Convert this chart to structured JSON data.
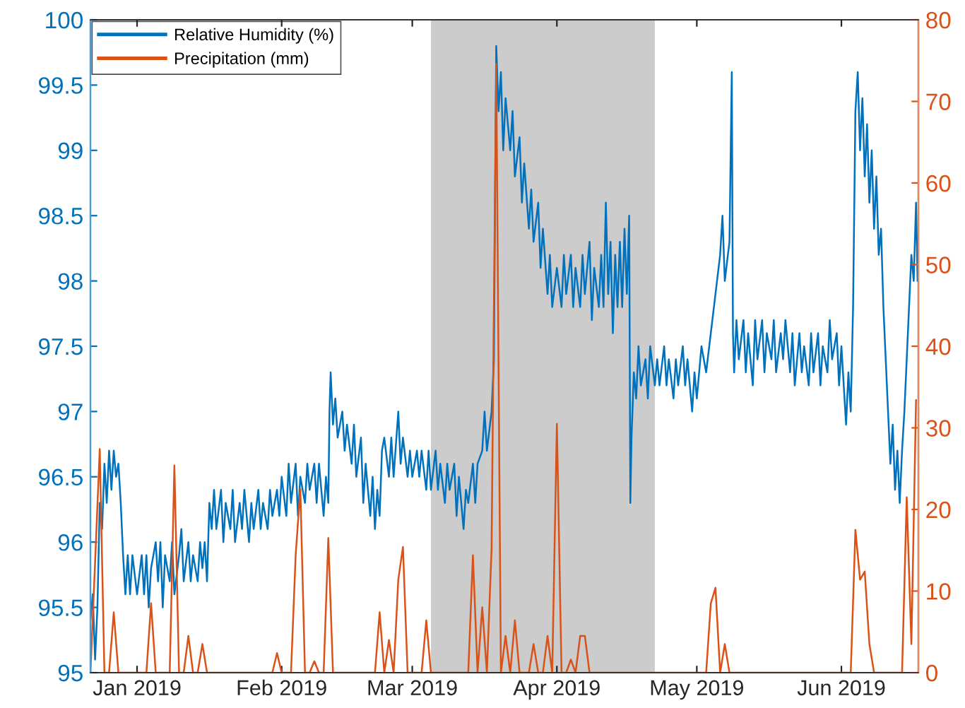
{
  "chart_data": {
    "type": "line",
    "xlim": [
      "2018-12-22",
      "2019-06-17T12:00"
    ],
    "xticks": [
      {
        "value": "2019-01-01",
        "label": "Jan 2019"
      },
      {
        "value": "2019-02-01",
        "label": "Feb 2019"
      },
      {
        "value": "2019-03-01",
        "label": "Mar 2019"
      },
      {
        "value": "2019-04-01",
        "label": "Apr 2019"
      },
      {
        "value": "2019-05-01",
        "label": "May 2019"
      },
      {
        "value": "2019-06-01",
        "label": "Jun 2019"
      }
    ],
    "ylim": [
      95,
      100
    ],
    "yticks": [
      95,
      95.5,
      96,
      96.5,
      97,
      97.5,
      98,
      98.5,
      99,
      99.5,
      100
    ],
    "y2lim": [
      0,
      80
    ],
    "y2ticks": [
      0,
      10,
      20,
      30,
      40,
      50,
      60,
      70,
      80
    ],
    "legend": "top left",
    "grid": false,
    "marker": "none",
    "line_style": "solid",
    "bands": [
      {
        "axis": "x",
        "from": "2019-03-05",
        "to": "2019-04-22",
        "color": "#cccccc"
      }
    ],
    "series": [
      {
        "name": "Relative Humidity (%)",
        "color": "#0072bd",
        "x": [
          "2018-12-22T00:00",
          "2018-12-22T12:00",
          "2018-12-23T00:00",
          "2018-12-23T12:00",
          "2018-12-24T00:00",
          "2018-12-24T12:00",
          "2018-12-25T00:00",
          "2018-12-25T12:00",
          "2018-12-26T00:00",
          "2018-12-26T12:00",
          "2018-12-27T00:00",
          "2018-12-27T12:00",
          "2018-12-28T00:00",
          "2018-12-28T12:00",
          "2018-12-29T00:00",
          "2018-12-29T12:00",
          "2018-12-30T00:00",
          "2018-12-30T12:00",
          "2018-12-31T00:00",
          "2019-01-01T00:00",
          "2019-01-02T00:00",
          "2019-01-02T12:00",
          "2019-01-03T00:00",
          "2019-01-03T12:00",
          "2019-01-04T00:00",
          "2019-01-05T00:00",
          "2019-01-05T12:00",
          "2019-01-06T00:00",
          "2019-01-06T12:00",
          "2019-01-07T00:00",
          "2019-01-08T00:00",
          "2019-01-08T12:00",
          "2019-01-09T00:00",
          "2019-01-10T00:00",
          "2019-01-10T12:00",
          "2019-01-11T00:00",
          "2019-01-12T00:00",
          "2019-01-12T12:00",
          "2019-01-13T00:00",
          "2019-01-14T00:00",
          "2019-01-14T12:00",
          "2019-01-15T00:00",
          "2019-01-15T12:00",
          "2019-01-16T00:00",
          "2019-01-16T12:00",
          "2019-01-17T00:00",
          "2019-01-17T12:00",
          "2019-01-18T00:00",
          "2019-01-19T00:00",
          "2019-01-19T12:00",
          "2019-01-20T00:00",
          "2019-01-21T00:00",
          "2019-01-21T12:00",
          "2019-01-22T00:00",
          "2019-01-23T00:00",
          "2019-01-23T12:00",
          "2019-01-24T00:00",
          "2019-01-25T00:00",
          "2019-01-25T12:00",
          "2019-01-26T00:00",
          "2019-01-27T00:00",
          "2019-01-27T12:00",
          "2019-01-28T00:00",
          "2019-01-29T00:00",
          "2019-01-29T12:00",
          "2019-01-30T00:00",
          "2019-01-31T00:00",
          "2019-01-31T12:00",
          "2019-02-01T00:00",
          "2019-02-02T00:00",
          "2019-02-02T12:00",
          "2019-02-03T00:00",
          "2019-02-04T00:00",
          "2019-02-04T12:00",
          "2019-02-05T00:00",
          "2019-02-06T00:00",
          "2019-02-06T12:00",
          "2019-02-07T00:00",
          "2019-02-08T00:00",
          "2019-02-08T12:00",
          "2019-02-09T00:00",
          "2019-02-10T00:00",
          "2019-02-10T12:00",
          "2019-02-11T00:00",
          "2019-02-11T06:00",
          "2019-02-11T12:00",
          "2019-02-12T00:00",
          "2019-02-12T12:00",
          "2019-02-13T00:00",
          "2019-02-14T00:00",
          "2019-02-14T12:00",
          "2019-02-15T00:00",
          "2019-02-16T00:00",
          "2019-02-16T12:00",
          "2019-02-17T00:00",
          "2019-02-18T00:00",
          "2019-02-18T12:00",
          "2019-02-19T00:00",
          "2019-02-20T00:00",
          "2019-02-20T12:00",
          "2019-02-21T00:00",
          "2019-02-21T12:00",
          "2019-02-22T00:00",
          "2019-02-22T12:00",
          "2019-02-23T00:00",
          "2019-02-24T00:00",
          "2019-02-24T12:00",
          "2019-02-25T00:00",
          "2019-02-26T00:00",
          "2019-02-26T12:00",
          "2019-02-27T00:00",
          "2019-02-28T00:00",
          "2019-02-28T12:00",
          "2019-03-01T00:00",
          "2019-03-02T00:00",
          "2019-03-02T12:00",
          "2019-03-03T00:00",
          "2019-03-04T00:00",
          "2019-03-04T12:00",
          "2019-03-05T00:00",
          "2019-03-06T00:00",
          "2019-03-06T12:00",
          "2019-03-07T00:00",
          "2019-03-08T00:00",
          "2019-03-08T12:00",
          "2019-03-09T00:00",
          "2019-03-10T00:00",
          "2019-03-10T12:00",
          "2019-03-11T00:00",
          "2019-03-12T00:00",
          "2019-03-12T12:00",
          "2019-03-13T00:00",
          "2019-03-14T00:00",
          "2019-03-14T12:00",
          "2019-03-15T00:00",
          "2019-03-16T00:00",
          "2019-03-16T12:00",
          "2019-03-17T00:00",
          "2019-03-18T00:00",
          "2019-03-18T12:00",
          "2019-03-19T00:00",
          "2019-03-19T12:00",
          "2019-03-20T00:00",
          "2019-03-20T12:00",
          "2019-03-21T00:00",
          "2019-03-22T00:00",
          "2019-03-22T12:00",
          "2019-03-23T00:00",
          "2019-03-24T00:00",
          "2019-03-24T12:00",
          "2019-03-25T00:00",
          "2019-03-26T00:00",
          "2019-03-26T12:00",
          "2019-03-27T00:00",
          "2019-03-28T00:00",
          "2019-03-28T12:00",
          "2019-03-29T00:00",
          "2019-03-30T00:00",
          "2019-03-30T12:00",
          "2019-03-31T00:00",
          "2019-04-01T00:00",
          "2019-04-02T00:00",
          "2019-04-02T12:00",
          "2019-04-03T00:00",
          "2019-04-04T00:00",
          "2019-04-04T12:00",
          "2019-04-05T00:00",
          "2019-04-06T00:00",
          "2019-04-06T12:00",
          "2019-04-07T00:00",
          "2019-04-08T00:00",
          "2019-04-08T12:00",
          "2019-04-09T00:00",
          "2019-04-10T00:00",
          "2019-04-10T12:00",
          "2019-04-11T00:00",
          "2019-04-11T12:00",
          "2019-04-12T00:00",
          "2019-04-12T12:00",
          "2019-04-13T00:00",
          "2019-04-13T12:00",
          "2019-04-14T00:00",
          "2019-04-14T12:00",
          "2019-04-15T00:00",
          "2019-04-15T12:00",
          "2019-04-16T00:00",
          "2019-04-16T12:00",
          "2019-04-16T18:00",
          "2019-04-17T00:00",
          "2019-04-17T12:00",
          "2019-04-18T00:00",
          "2019-04-18T12:00",
          "2019-04-19T00:00",
          "2019-04-20T00:00",
          "2019-04-20T12:00",
          "2019-04-21T00:00",
          "2019-04-22T00:00",
          "2019-04-22T12:00",
          "2019-04-23T00:00",
          "2019-04-24T00:00",
          "2019-04-24T12:00",
          "2019-04-25T00:00",
          "2019-04-26T00:00",
          "2019-04-26T12:00",
          "2019-04-27T00:00",
          "2019-04-28T00:00",
          "2019-04-28T12:00",
          "2019-04-29T00:00",
          "2019-04-30T00:00",
          "2019-04-30T12:00",
          "2019-05-01T00:00",
          "2019-05-02T00:00",
          "2019-05-03T00:00",
          "2019-05-04T00:00",
          "2019-05-05T00:00",
          "2019-05-06T00:00",
          "2019-05-06T12:00",
          "2019-05-07T00:00",
          "2019-05-08T00:00",
          "2019-05-08T12:00",
          "2019-05-08T18:00",
          "2019-05-09T00:00",
          "2019-05-09T12:00",
          "2019-05-10T00:00",
          "2019-05-11T00:00",
          "2019-05-11T12:00",
          "2019-05-12T00:00",
          "2019-05-13T00:00",
          "2019-05-13T12:00",
          "2019-05-14T00:00",
          "2019-05-15T00:00",
          "2019-05-15T12:00",
          "2019-05-16T00:00",
          "2019-05-17T00:00",
          "2019-05-17T12:00",
          "2019-05-18T00:00",
          "2019-05-19T00:00",
          "2019-05-19T12:00",
          "2019-05-20T00:00",
          "2019-05-21T00:00",
          "2019-05-21T12:00",
          "2019-05-22T00:00",
          "2019-05-23T00:00",
          "2019-05-23T12:00",
          "2019-05-24T00:00",
          "2019-05-25T00:00",
          "2019-05-25T12:00",
          "2019-05-26T00:00",
          "2019-05-27T00:00",
          "2019-05-27T12:00",
          "2019-05-28T00:00",
          "2019-05-29T00:00",
          "2019-05-29T12:00",
          "2019-05-30T00:00",
          "2019-05-31T00:00",
          "2019-05-31T12:00",
          "2019-06-01T00:00",
          "2019-06-02T00:00",
          "2019-06-02T12:00",
          "2019-06-03T00:00",
          "2019-06-03T12:00",
          "2019-06-04T00:00",
          "2019-06-04T12:00",
          "2019-06-05T00:00",
          "2019-06-05T12:00",
          "2019-06-06T00:00",
          "2019-06-06T12:00",
          "2019-06-07T00:00",
          "2019-06-07T12:00",
          "2019-06-08T00:00",
          "2019-06-08T12:00",
          "2019-06-09T00:00",
          "2019-06-09T12:00",
          "2019-06-10T00:00",
          "2019-06-10T12:00",
          "2019-06-11T00:00",
          "2019-06-11T12:00",
          "2019-06-12T00:00",
          "2019-06-12T12:00",
          "2019-06-13T00:00",
          "2019-06-13T12:00",
          "2019-06-14T00:00",
          "2019-06-14T12:00",
          "2019-06-15T00:00",
          "2019-06-15T12:00",
          "2019-06-16T00:00",
          "2019-06-16T12:00",
          "2019-06-17T00:00",
          "2019-06-17T08:00"
        ],
        "values": [
          95.4,
          95.6,
          95.1,
          95.5,
          96.3,
          96.1,
          96.6,
          96.3,
          96.7,
          96.4,
          96.7,
          96.5,
          96.6,
          96.3,
          95.9,
          95.6,
          95.9,
          95.6,
          95.9,
          95.6,
          95.9,
          95.6,
          95.9,
          95.5,
          95.8,
          96.0,
          95.7,
          96.0,
          95.5,
          95.9,
          95.7,
          96.0,
          95.6,
          95.9,
          96.1,
          95.7,
          96.0,
          95.7,
          95.9,
          95.7,
          96.0,
          95.8,
          96.0,
          95.7,
          96.3,
          96.1,
          96.4,
          96.1,
          96.4,
          96.0,
          96.3,
          96.1,
          96.4,
          96.0,
          96.3,
          96.1,
          96.4,
          96.0,
          96.3,
          96.1,
          96.4,
          96.1,
          96.3,
          96.1,
          96.4,
          96.2,
          96.4,
          96.2,
          96.5,
          96.2,
          96.6,
          96.3,
          96.6,
          96.2,
          96.5,
          96.3,
          96.6,
          96.4,
          96.6,
          96.3,
          96.6,
          96.2,
          96.5,
          96.3,
          97.0,
          97.3,
          96.9,
          97.1,
          96.8,
          97.0,
          96.7,
          96.9,
          96.6,
          96.9,
          96.5,
          96.8,
          96.3,
          96.6,
          96.2,
          96.5,
          96.1,
          96.4,
          96.2,
          96.7,
          96.8,
          96.5,
          96.8,
          96.5,
          97.0,
          96.6,
          96.8,
          96.5,
          96.7,
          96.5,
          96.7,
          96.5,
          96.7,
          96.4,
          96.7,
          96.4,
          96.7,
          96.4,
          96.6,
          96.3,
          96.6,
          96.4,
          96.6,
          96.2,
          96.5,
          96.1,
          96.4,
          96.3,
          96.6,
          96.3,
          96.6,
          96.7,
          97.0,
          96.7,
          97.0,
          97.4,
          99.8,
          99.3,
          99.6,
          99.0,
          99.4,
          99.0,
          99.3,
          98.8,
          99.1,
          98.6,
          98.9,
          98.4,
          98.7,
          98.3,
          98.6,
          98.1,
          98.4,
          97.9,
          98.2,
          97.8,
          98.1,
          97.8,
          98.2,
          97.9,
          98.2,
          97.8,
          98.1,
          97.8,
          98.2,
          97.9,
          98.3,
          97.7,
          98.1,
          97.8,
          98.2,
          97.8,
          98.6,
          97.9,
          98.3,
          97.6,
          98.2,
          97.8,
          98.3,
          97.8,
          98.4,
          97.9,
          98.5,
          96.3,
          96.8,
          97.3,
          97.1,
          97.5,
          97.2,
          97.4,
          97.1,
          97.5,
          97.2,
          97.4,
          97.2,
          97.5,
          97.2,
          97.4,
          97.1,
          97.4,
          97.2,
          97.5,
          97.2,
          97.4,
          97.0,
          97.3,
          97.1,
          97.5,
          97.3,
          97.6,
          97.9,
          98.2,
          98.5,
          98.0,
          98.3,
          99.6,
          97.6,
          97.3,
          97.7,
          97.4,
          97.7,
          97.3,
          97.6,
          97.2,
          97.7,
          97.4,
          97.7,
          97.3,
          97.6,
          97.4,
          97.7,
          97.3,
          97.6,
          97.4,
          97.7,
          97.3,
          97.6,
          97.2,
          97.6,
          97.3,
          97.5,
          97.2,
          97.6,
          97.3,
          97.6,
          97.2,
          97.5,
          97.3,
          97.7,
          97.4,
          97.6,
          97.2,
          97.5,
          96.9,
          97.3,
          97.0,
          97.8,
          99.3,
          99.6,
          99.0,
          99.4,
          98.8,
          99.2,
          98.6,
          99.0,
          98.4,
          98.8,
          98.2,
          98.4,
          97.8,
          97.4,
          97.0,
          96.6,
          96.9,
          96.4,
          96.7,
          96.3,
          96.7,
          97.0,
          97.4,
          97.8,
          98.2,
          98.0,
          98.6,
          98.0
        ]
      },
      {
        "name": "Precipitation (mm)",
        "color": "#d95319",
        "axis": "y2",
        "x": [
          "2018-12-22",
          "2018-12-23",
          "2018-12-24",
          "2018-12-25",
          "2018-12-26",
          "2018-12-27",
          "2018-12-28",
          "2019-01-03",
          "2019-01-04",
          "2019-01-05",
          "2019-01-08",
          "2019-01-09",
          "2019-01-10",
          "2019-01-11",
          "2019-01-12",
          "2019-01-13",
          "2019-01-14",
          "2019-01-15",
          "2019-01-16",
          "2019-01-30",
          "2019-01-31",
          "2019-02-01",
          "2019-02-03",
          "2019-02-04",
          "2019-02-05",
          "2019-02-06",
          "2019-02-07",
          "2019-02-08",
          "2019-02-09",
          "2019-02-10",
          "2019-02-11",
          "2019-02-12",
          "2019-02-21",
          "2019-02-22",
          "2019-02-23",
          "2019-02-24",
          "2019-02-25",
          "2019-02-26",
          "2019-02-27",
          "2019-02-28",
          "2019-03-03",
          "2019-03-04",
          "2019-03-05",
          "2019-03-13",
          "2019-03-14",
          "2019-03-15",
          "2019-03-16",
          "2019-03-17",
          "2019-03-18",
          "2019-03-19",
          "2019-03-20",
          "2019-03-21",
          "2019-03-22",
          "2019-03-23",
          "2019-03-24",
          "2019-03-26",
          "2019-03-27",
          "2019-03-28",
          "2019-03-29",
          "2019-03-30",
          "2019-03-31",
          "2019-04-01",
          "2019-04-02",
          "2019-04-03",
          "2019-04-04",
          "2019-04-05",
          "2019-04-06",
          "2019-04-07",
          "2019-04-08",
          "2019-05-03",
          "2019-05-04",
          "2019-05-05",
          "2019-05-06",
          "2019-05-07",
          "2019-05-08",
          "2019-06-03",
          "2019-06-04",
          "2019-06-05",
          "2019-06-06",
          "2019-06-07",
          "2019-06-08",
          "2019-06-14",
          "2019-06-15",
          "2019-06-16",
          "2019-06-17"
        ],
        "values": [
          0,
          13.5,
          27.4,
          0,
          0,
          7.4,
          0,
          0,
          8.5,
          0,
          0,
          25.4,
          0,
          0,
          4.5,
          0,
          0,
          3.5,
          0,
          0,
          2.4,
          0,
          0,
          14.4,
          22.5,
          0,
          0,
          1.4,
          0,
          0,
          16.5,
          0,
          0,
          7.4,
          0,
          4,
          0,
          11.4,
          15.4,
          0,
          0,
          6.4,
          0,
          0,
          14.4,
          0,
          8,
          0,
          15.2,
          74.6,
          0,
          4.5,
          0,
          6.4,
          0,
          0,
          3.5,
          0,
          0,
          4.5,
          0,
          30.5,
          0,
          0,
          1.6,
          0,
          4.5,
          4.5,
          0,
          0,
          8.5,
          10.4,
          0,
          3.5,
          0,
          0,
          17.5,
          11.4,
          12.4,
          3.5,
          0,
          0,
          21.5,
          3.5,
          33.4
        ]
      }
    ]
  }
}
